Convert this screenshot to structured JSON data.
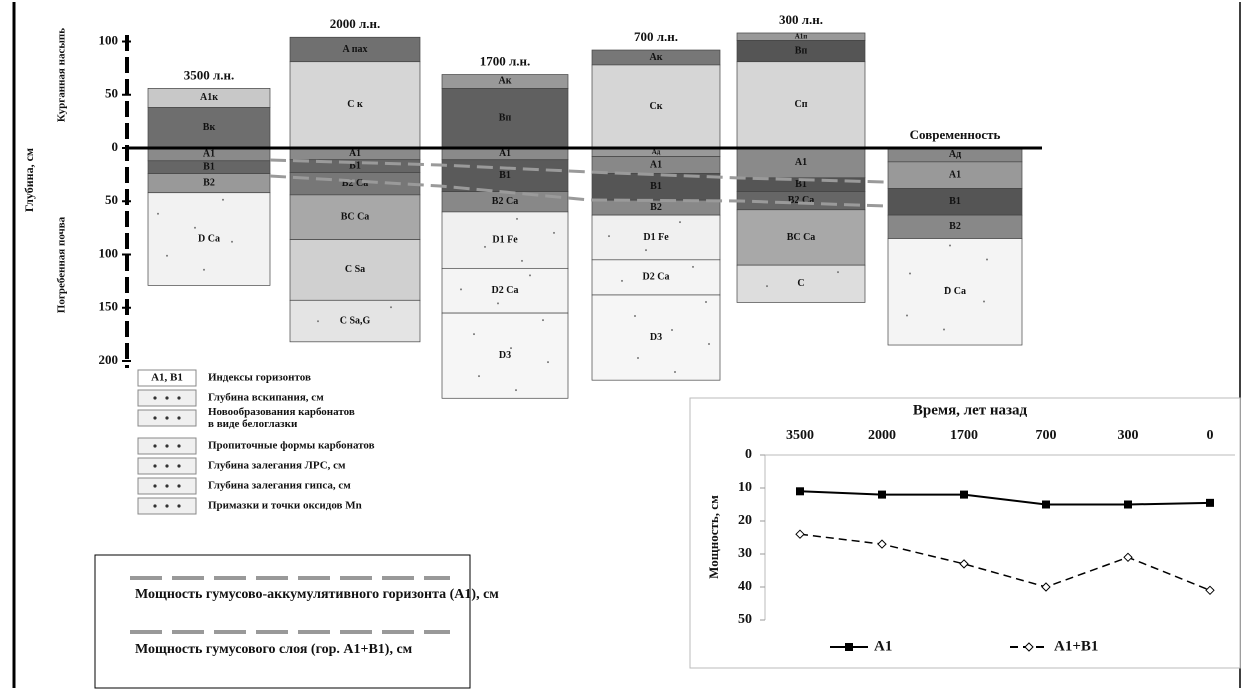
{
  "axis": {
    "label": "Глубина, см",
    "upper_label": "Курганная насыпь",
    "lower_label": "Погребенная почва",
    "ticks": [
      {
        "value": -100,
        "label": "100"
      },
      {
        "value": -50,
        "label": "50"
      },
      0,
      50,
      100,
      150,
      200
    ]
  },
  "profiles": [
    {
      "title": "3500 л.н.",
      "horizons": [
        {
          "label": "A1к",
          "top": -56,
          "bottom": -38,
          "color": "#c8c8c8"
        },
        {
          "label": "Вк",
          "top": -38,
          "bottom": 0,
          "color": "#6e6e6e"
        },
        {
          "label": "A1",
          "top": 0,
          "bottom": 12,
          "color": "#8a8a8a"
        },
        {
          "label": "B1",
          "top": 12,
          "bottom": 24,
          "color": "#666666"
        },
        {
          "label": "B2",
          "top": 24,
          "bottom": 42,
          "color": "#999999"
        },
        {
          "label": "D Ca",
          "top": 42,
          "bottom": 129,
          "color": "#f2f2f2"
        }
      ]
    },
    {
      "title": "2000 л.н.",
      "horizons": [
        {
          "label": "A пах",
          "top": -104,
          "bottom": -81,
          "color": "#707070"
        },
        {
          "label": "C к",
          "top": -81,
          "bottom": 0,
          "color": "#d6d6d6"
        },
        {
          "label": "A1",
          "top": 0,
          "bottom": 11,
          "color": "#8a8a8a"
        },
        {
          "label": "B1",
          "top": 11,
          "bottom": 23,
          "color": "#666666"
        },
        {
          "label": "B2 Ca",
          "top": 23,
          "bottom": 44,
          "color": "#777777"
        },
        {
          "label": "BC Ca",
          "top": 44,
          "bottom": 86,
          "color": "#a8a8a8"
        },
        {
          "label": "C Sa",
          "top": 86,
          "bottom": 143,
          "color": "#d0d0d0"
        },
        {
          "label": "C Sa,G",
          "top": 143,
          "bottom": 182,
          "color": "#e4e4e4"
        }
      ]
    },
    {
      "title": "1700 л.н.",
      "horizons": [
        {
          "label": "Aк",
          "top": -69,
          "bottom": -56,
          "color": "#999999"
        },
        {
          "label": "Bп",
          "top": -56,
          "bottom": 0,
          "color": "#606060"
        },
        {
          "label": "A1",
          "top": 0,
          "bottom": 11,
          "color": "#8a8a8a"
        },
        {
          "label": "B1",
          "top": 11,
          "bottom": 41,
          "color": "#5a5a5a"
        },
        {
          "label": "B2 Ca",
          "top": 41,
          "bottom": 60,
          "color": "#888888"
        },
        {
          "label": "D1 Fe",
          "top": 60,
          "bottom": 113,
          "color": "#f0f0f0"
        },
        {
          "label": "D2 Ca",
          "top": 113,
          "bottom": 155,
          "color": "#f4f4f4"
        },
        {
          "label": "D3",
          "top": 155,
          "bottom": 235,
          "color": "#f6f6f6"
        }
      ]
    },
    {
      "title": "700 л.н.",
      "horizons": [
        {
          "label": "Aк",
          "top": -92,
          "bottom": -78,
          "color": "#777777"
        },
        {
          "label": "Cк",
          "top": -78,
          "bottom": 0,
          "color": "#d6d6d6"
        },
        {
          "label": "Aд",
          "top": 0,
          "bottom": 8,
          "color": "#999999"
        },
        {
          "label": "A1",
          "top": 8,
          "bottom": 24,
          "color": "#888888"
        },
        {
          "label": "B1",
          "top": 24,
          "bottom": 49,
          "color": "#555555"
        },
        {
          "label": "B2",
          "top": 49,
          "bottom": 63,
          "color": "#888888"
        },
        {
          "label": "D1 Fe",
          "top": 63,
          "bottom": 105,
          "color": "#f0f0f0"
        },
        {
          "label": "D2 Ca",
          "top": 105,
          "bottom": 138,
          "color": "#f4f4f4"
        },
        {
          "label": "D3",
          "top": 138,
          "bottom": 218,
          "color": "#f6f6f6"
        }
      ]
    },
    {
      "title": "300 л.н.",
      "horizons": [
        {
          "label": "A1п",
          "top": -108,
          "bottom": -101,
          "color": "#999999"
        },
        {
          "label": "Bп",
          "top": -101,
          "bottom": -81,
          "color": "#555555"
        },
        {
          "label": "Cп",
          "top": -81,
          "bottom": 0,
          "color": "#d6d6d6"
        },
        {
          "label": "A1",
          "top": 0,
          "bottom": 28,
          "color": "#8a8a8a"
        },
        {
          "label": "B1",
          "top": 28,
          "bottom": 41,
          "color": "#555555"
        },
        {
          "label": "B2 Ca",
          "top": 41,
          "bottom": 58,
          "color": "#666666"
        },
        {
          "label": "BC Ca",
          "top": 58,
          "bottom": 110,
          "color": "#a8a8a8"
        },
        {
          "label": "C",
          "top": 110,
          "bottom": 145,
          "color": "#dddddd"
        }
      ]
    },
    {
      "title": "Современность",
      "horizons": [
        {
          "label": "Aд",
          "top": 0,
          "bottom": 13,
          "color": "#888888"
        },
        {
          "label": "A1",
          "top": 13,
          "bottom": 38,
          "color": "#999999"
        },
        {
          "label": "B1",
          "top": 38,
          "bottom": 63,
          "color": "#555555"
        },
        {
          "label": "B2",
          "top": 63,
          "bottom": 85,
          "color": "#888888"
        },
        {
          "label": "D Ca",
          "top": 85,
          "bottom": 185,
          "color": "#f4f4f4"
        }
      ]
    }
  ],
  "legend": [
    {
      "symbol": "A1, B1",
      "text": "Индексы горизонтов"
    },
    {
      "text": "Глубина вскипания, см"
    },
    {
      "text": "Новообразования карбонатов в виде белоглазки"
    },
    {
      "text": "Пропиточные формы карбонатов"
    },
    {
      "text": "Глубина залегания ЛРС, см"
    },
    {
      "text": "Глубина залегания гипса, см"
    },
    {
      "text": "Примазки и точки оксидов Mn"
    }
  ],
  "box_legend": [
    "Мощность гумусово-аккумулятивного горизонта (A1), см",
    "Мощность гумусового слоя (гор. A1+B1), см"
  ],
  "chart_data": {
    "type": "line",
    "x_label": "Время, лет назад",
    "y_label": "Мощность, см",
    "categories": [
      "3500",
      "2000",
      "1700",
      "700",
      "300",
      "0"
    ],
    "ylim": [
      0,
      50
    ],
    "yticks": [
      0,
      10,
      20,
      30,
      40,
      50
    ],
    "y_inverted": true,
    "legend": "bottom",
    "series": [
      {
        "name": "A1",
        "color": "#000000",
        "line_style": "solid",
        "marker": "square",
        "values": [
          11,
          12,
          12,
          15,
          15,
          14.5
        ]
      },
      {
        "name": "A1+B1",
        "color": "#000000",
        "line_style": "dashed",
        "marker": "diamond",
        "values": [
          24,
          27,
          33,
          40,
          31,
          41
        ]
      }
    ]
  }
}
